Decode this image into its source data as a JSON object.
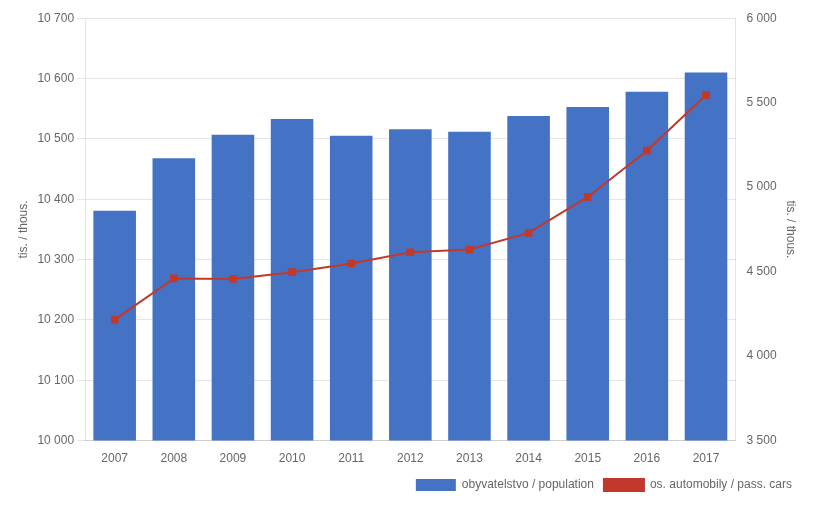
{
  "chart_data": {
    "type": "bar",
    "categories": [
      "2007",
      "2008",
      "2009",
      "2010",
      "2011",
      "2012",
      "2013",
      "2014",
      "2015",
      "2016",
      "2017"
    ],
    "series": [
      {
        "name": "obyvatelstvo / population",
        "type": "bar",
        "color": "#4472c4",
        "values": [
          10381,
          10468,
          10507,
          10533,
          10505,
          10516,
          10512,
          10538,
          10553,
          10578,
          10610
        ]
      },
      {
        "name": "os. automobily / pass. cars",
        "type": "line",
        "axis": "y2",
        "color": "#c0392b",
        "marker": "square",
        "values": [
          4216,
          4460,
          4457,
          4497,
          4548,
          4615,
          4631,
          4729,
          4942,
          5216,
          5545
        ]
      }
    ],
    "ylabel": "tis. / thous.",
    "y2label": "tis. / thous.",
    "ylim": [
      10000,
      10700
    ],
    "yticks": [
      {
        "value": 10000,
        "label": "10 000"
      },
      {
        "value": 10100,
        "label": "10 100"
      },
      {
        "value": 10200,
        "label": "10 200"
      },
      {
        "value": 10300,
        "label": "10 300"
      },
      {
        "value": 10400,
        "label": "10 400"
      },
      {
        "value": 10500,
        "label": "10 500"
      },
      {
        "value": 10600,
        "label": "10 600"
      },
      {
        "value": 10700,
        "label": "10 700"
      }
    ],
    "y2lim": [
      3500,
      6000
    ],
    "y2ticks": [
      {
        "value": 3500,
        "label": "3 500"
      },
      {
        "value": 4000,
        "label": "4 000"
      },
      {
        "value": 4500,
        "label": "4 500"
      },
      {
        "value": 5000,
        "label": "5 000"
      },
      {
        "value": 5500,
        "label": "5 500"
      },
      {
        "value": 6000,
        "label": "6 000"
      }
    ],
    "grid": true,
    "legend": "lower right"
  }
}
